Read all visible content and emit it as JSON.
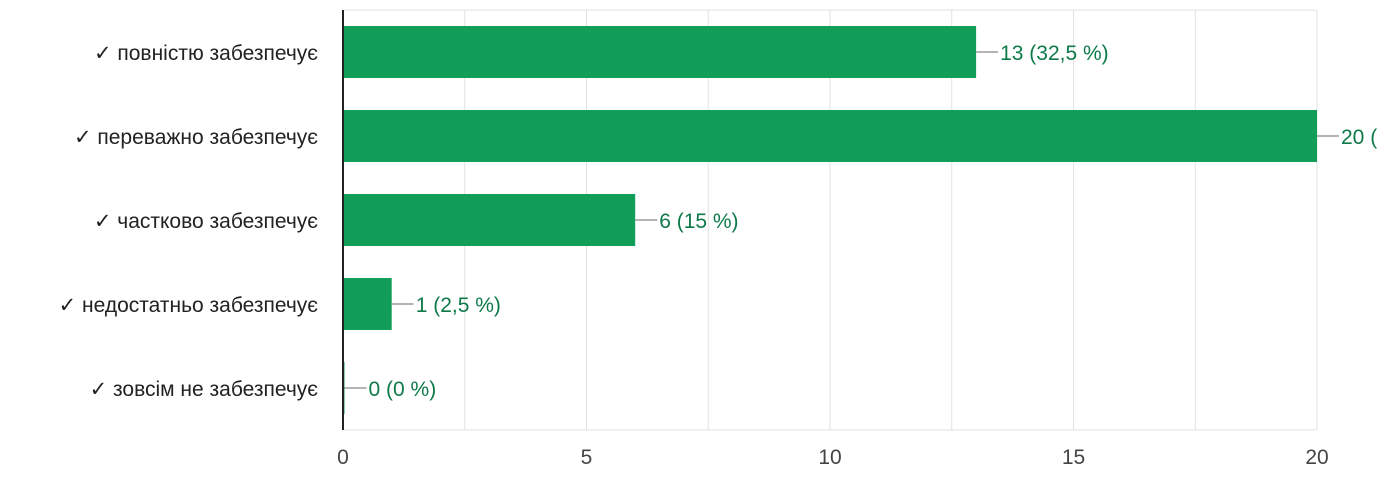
{
  "chart_data": {
    "type": "bar",
    "orientation": "horizontal",
    "categories": [
      "✓ повністю забезпечує",
      "✓ переважно забезпечує",
      "✓ частково забезпечує",
      "✓ недостатньо забезпечує",
      "✓ зовсім не забезпечує"
    ],
    "values": [
      13,
      20,
      6,
      1,
      0
    ],
    "data_labels": [
      "13 (32,5 %)",
      "20 (",
      "6 (15 %)",
      "1 (2,5 %)",
      "0 (0 %)"
    ],
    "x_ticks": [
      0,
      5,
      10,
      15,
      20
    ],
    "xlim": [
      0,
      20
    ],
    "grid": true,
    "colors": {
      "bar": "#129d58",
      "data_label": "#0d7a48",
      "leader_line": "#888888",
      "grid": "#e2e2e2",
      "axis": "#222222",
      "category_label": "#222222",
      "tick_label": "#444444"
    }
  }
}
